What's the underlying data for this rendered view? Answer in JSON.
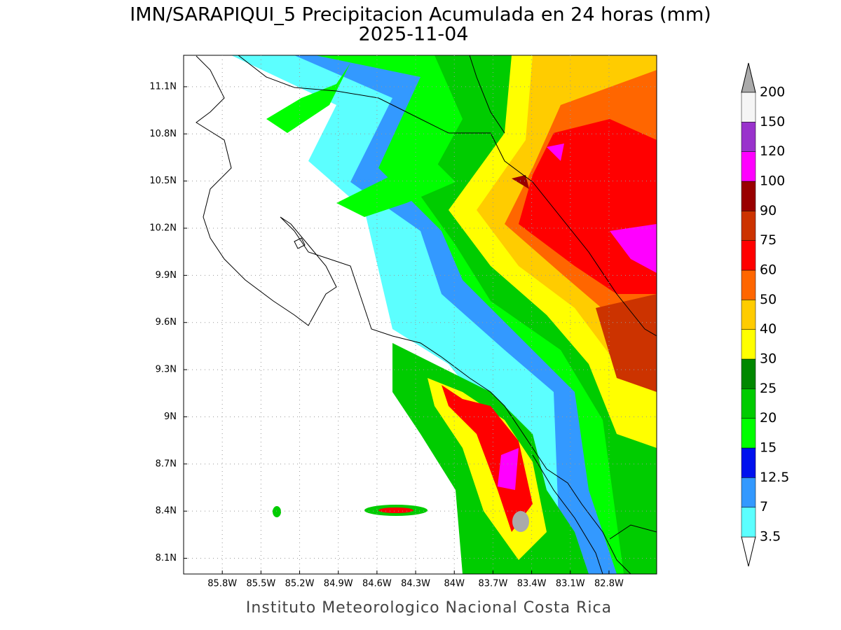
{
  "map": {
    "title": "IMN/SARAPIQUI_5 Precipitacion Acumulada en 24 horas (mm)",
    "subtitle": "2025-11-04",
    "footer": "Instituto Meteorologico Nacional Costa Rica",
    "xlim": [
      -86.1,
      -82.43
    ],
    "ylim": [
      8.0,
      11.3
    ],
    "yticks": [
      {
        "value": 8.1,
        "label": "8.1N"
      },
      {
        "value": 8.4,
        "label": "8.4N"
      },
      {
        "value": 8.7,
        "label": "8.7N"
      },
      {
        "value": 9,
        "label": "9N"
      },
      {
        "value": 9.3,
        "label": "9.3N"
      },
      {
        "value": 9.6,
        "label": "9.6N"
      },
      {
        "value": 9.9,
        "label": "9.9N"
      },
      {
        "value": 10.2,
        "label": "10.2N"
      },
      {
        "value": 10.5,
        "label": "10.5N"
      },
      {
        "value": 10.8,
        "label": "10.8N"
      },
      {
        "value": 11.1,
        "label": "11.1N"
      }
    ],
    "xticks": [
      {
        "value": -85.8,
        "label": "85.8W"
      },
      {
        "value": -85.5,
        "label": "85.5W"
      },
      {
        "value": -85.2,
        "label": "85.2W"
      },
      {
        "value": -84.9,
        "label": "84.9W"
      },
      {
        "value": -84.6,
        "label": "84.6W"
      },
      {
        "value": -84.3,
        "label": "84.3W"
      },
      {
        "value": -84,
        "label": "84W"
      },
      {
        "value": -83.7,
        "label": "83.7W"
      },
      {
        "value": -83.4,
        "label": "83.4W"
      },
      {
        "value": -83.1,
        "label": "83.1W"
      },
      {
        "value": -82.8,
        "label": "82.8W"
      }
    ],
    "legend": {
      "levels": [
        3.5,
        7,
        12.5,
        15,
        20,
        25,
        30,
        40,
        50,
        60,
        75,
        90,
        100,
        120,
        150,
        200
      ],
      "colors": [
        "#ffffff",
        "#5cffff",
        "#3399ff",
        "#0011ee",
        "#00ff00",
        "#00cc00",
        "#008800",
        "#ffff00",
        "#ffcc00",
        "#ff6600",
        "#ff0000",
        "#cc3300",
        "#990000",
        "#ff00ff",
        "#9933cc",
        "#f5f5f5",
        "#aaaaaa"
      ]
    }
  }
}
